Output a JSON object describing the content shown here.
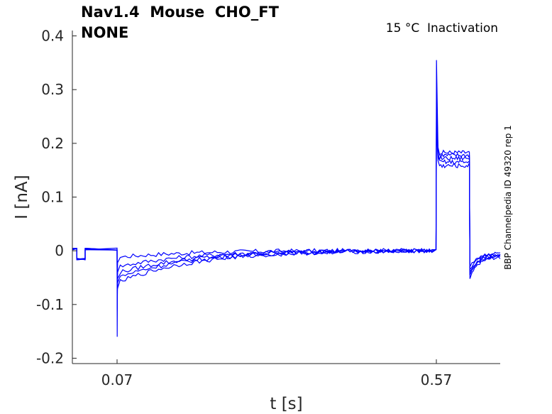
{
  "header": {
    "title_line1": "Nav1.4  Mouse  CHO_FT",
    "title_line2": "NONE",
    "annotation": "15 °C  Inactivation",
    "side_label": "BBP Channelpedia ID 49320 rep 1"
  },
  "chart_data": {
    "type": "line",
    "xlabel": "t [s]",
    "ylabel": "I [nA]",
    "xlim": [
      0.0,
      0.67
    ],
    "ylim": [
      -0.21,
      0.41
    ],
    "xticks": [
      0.07,
      0.57
    ],
    "xtick_labels": [
      "0.07",
      "0.57"
    ],
    "yticks": [
      -0.2,
      -0.1,
      0,
      0.1,
      0.2,
      0.3,
      0.4
    ],
    "ytick_labels": [
      "-0.2",
      "-0.1",
      "0",
      "0.1",
      "0.2",
      "0.3",
      "0.4"
    ],
    "grid": false,
    "line_color": "#0000ff",
    "series": [
      {
        "values": {
          "step1_t": [
            0.0,
            0.007,
            0.007,
            0.02,
            0.02,
            0.07
          ],
          "step1_i": [
            0.003,
            0.003,
            -0.015,
            -0.015,
            0.003,
            0.003
          ],
          "dip": -0.16,
          "sustained": -0.012,
          "step2_peak": 0.355,
          "step2_plateau": 0.183,
          "tail_dip": -0.052,
          "tail_level": -0.012
        }
      },
      {
        "values": {
          "dip": -0.11,
          "sustained": -0.03,
          "step2_peak": 0.3,
          "step2_plateau": 0.178,
          "tail_dip": -0.045,
          "tail_level": -0.01
        }
      },
      {
        "values": {
          "dip": -0.09,
          "sustained": -0.042,
          "step2_peak": 0.27,
          "step2_plateau": 0.172,
          "tail_dip": -0.04,
          "tail_level": -0.008
        }
      },
      {
        "values": {
          "dip": -0.075,
          "sustained": -0.05,
          "step2_peak": 0.25,
          "step2_plateau": 0.165,
          "tail_dip": -0.035,
          "tail_level": -0.006
        }
      },
      {
        "values": {
          "dip": -0.068,
          "sustained": -0.06,
          "step2_peak": 0.23,
          "step2_plateau": 0.158,
          "tail_dip": -0.03,
          "tail_level": -0.004
        }
      }
    ]
  }
}
